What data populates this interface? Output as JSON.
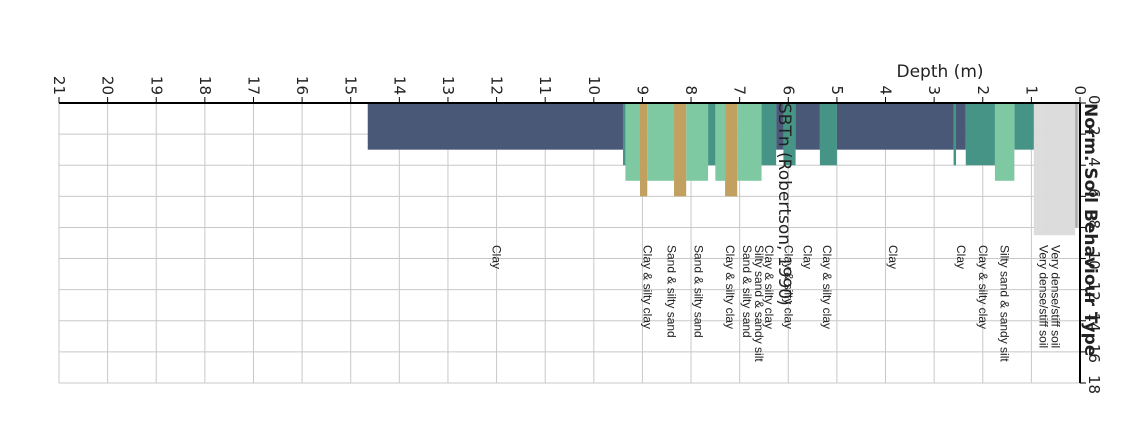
{
  "title": "Norm. Soil Behaviour Type",
  "chart_data": {
    "type": "bar",
    "orientation": "rotated",
    "title": "Norm. Soil Behaviour Type",
    "depth_axis": {
      "label": "Depth (m)",
      "range": [
        0,
        21
      ],
      "ticks": [
        0,
        1,
        2,
        3,
        4,
        5,
        6,
        7,
        8,
        9,
        10,
        11,
        12,
        13,
        14,
        15,
        16,
        17,
        18,
        19,
        20,
        21
      ]
    },
    "value_axis": {
      "label": "SBTn (Robertson, 1990)",
      "range": [
        0,
        18
      ],
      "ticks": [
        0,
        2,
        4,
        6,
        8,
        10,
        12,
        14,
        16,
        18
      ],
      "tick_labels": [
        "0",
        "2",
        "4",
        "6",
        "8",
        "10",
        "12",
        "14",
        "16",
        "18"
      ]
    },
    "grid": true,
    "colors": {
      "Clay": "#4a5878",
      "Clay & silty clay": "#469486",
      "Silty sand & sandy silt": "#7ec8a2",
      "Sand & silty sand": "#c2a060",
      "Very dense/stiff soil": "#dcdcdc",
      "Very dense/stiff soil (dark)": "#a8a8a8"
    },
    "layers": [
      {
        "from": 0.0,
        "to": 0.05,
        "value": 8.0,
        "label": "Very dense/stiff soil"
      },
      {
        "from": 0.05,
        "to": 0.1,
        "value": 8.0,
        "label": "Very dense/stiff soil"
      },
      {
        "from": 0.1,
        "to": 0.8,
        "value": 8.5,
        "label": "Very dense/stiff soil"
      },
      {
        "from": 0.8,
        "to": 0.95,
        "value": 8.5,
        "label": "Very dense/stiff soil"
      },
      {
        "from": 0.95,
        "to": 1.35,
        "value": 3.0,
        "label": "Clay & silty clay"
      },
      {
        "from": 1.35,
        "to": 1.75,
        "value": 5.0,
        "label": "Silty sand & sandy silt"
      },
      {
        "from": 1.75,
        "to": 2.35,
        "value": 4.0,
        "label": "Clay & silty clay"
      },
      {
        "from": 2.35,
        "to": 2.55,
        "value": 3.0,
        "label": "Clay"
      },
      {
        "from": 2.55,
        "to": 2.6,
        "value": 4.0,
        "label": "Clay & silty clay"
      },
      {
        "from": 2.6,
        "to": 5.0,
        "value": 3.0,
        "label": "Clay"
      },
      {
        "from": 5.0,
        "to": 5.35,
        "value": 4.0,
        "label": "Clay & silty clay"
      },
      {
        "from": 5.35,
        "to": 5.85,
        "value": 3.0,
        "label": "Clay"
      },
      {
        "from": 5.85,
        "to": 6.1,
        "value": 4.0,
        "label": "Clay & silty clay"
      },
      {
        "from": 6.1,
        "to": 6.25,
        "value": 3.0,
        "label": "Clay"
      },
      {
        "from": 6.25,
        "to": 6.55,
        "value": 4.0,
        "label": "Clay & silty clay"
      },
      {
        "from": 6.55,
        "to": 7.05,
        "value": 5.0,
        "label": "Silty sand & sandy silt"
      },
      {
        "from": 7.05,
        "to": 7.3,
        "value": 6.0,
        "label": "Sand & silty sand"
      },
      {
        "from": 7.3,
        "to": 7.5,
        "value": 5.0,
        "label": "Silty sand & sandy silt"
      },
      {
        "from": 7.5,
        "to": 7.65,
        "value": 4.0,
        "label": "Clay & silty clay"
      },
      {
        "from": 7.65,
        "to": 8.1,
        "value": 5.0,
        "label": "Silty sand & sandy silt"
      },
      {
        "from": 8.1,
        "to": 8.35,
        "value": 6.0,
        "label": "Sand & silty sand"
      },
      {
        "from": 8.35,
        "to": 8.9,
        "value": 5.0,
        "label": "Silty sand & sandy silt"
      },
      {
        "from": 8.9,
        "to": 9.05,
        "value": 6.0,
        "label": "Sand & silty sand"
      },
      {
        "from": 9.05,
        "to": 9.35,
        "value": 5.0,
        "label": "Silty sand & sandy silt"
      },
      {
        "from": 9.35,
        "to": 9.4,
        "value": 4.0,
        "label": "Clay & silty clay"
      },
      {
        "from": 9.4,
        "to": 14.65,
        "value": 3.0,
        "label": "Clay"
      }
    ],
    "labels": [
      {
        "depth": 0.5,
        "text": "Very dense/stiff soil"
      },
      {
        "depth": 0.75,
        "text": "Very dense/stiff soil"
      },
      {
        "depth": 1.55,
        "text": "Silty sand & sandy silt"
      },
      {
        "depth": 2.0,
        "text": "Clay & silty clay"
      },
      {
        "depth": 2.45,
        "text": "Clay"
      },
      {
        "depth": 3.85,
        "text": "Clay"
      },
      {
        "depth": 5.2,
        "text": "Clay & silty clay"
      },
      {
        "depth": 5.6,
        "text": "Clay"
      },
      {
        "depth": 6.0,
        "text": "Clay & silty clay"
      },
      {
        "depth": 6.4,
        "text": "Clay & silty clay"
      },
      {
        "depth": 6.6,
        "text": "Silty sand & sandy silt"
      },
      {
        "depth": 6.85,
        "text": "Sand & silty sand"
      },
      {
        "depth": 7.2,
        "text": "Clay & silty clay"
      },
      {
        "depth": 7.85,
        "text": "Sand & silty sand"
      },
      {
        "depth": 8.4,
        "text": "Sand & silty sand"
      },
      {
        "depth": 8.9,
        "text": "Clay & silty clay"
      },
      {
        "depth": 12.0,
        "text": "Clay"
      }
    ]
  }
}
